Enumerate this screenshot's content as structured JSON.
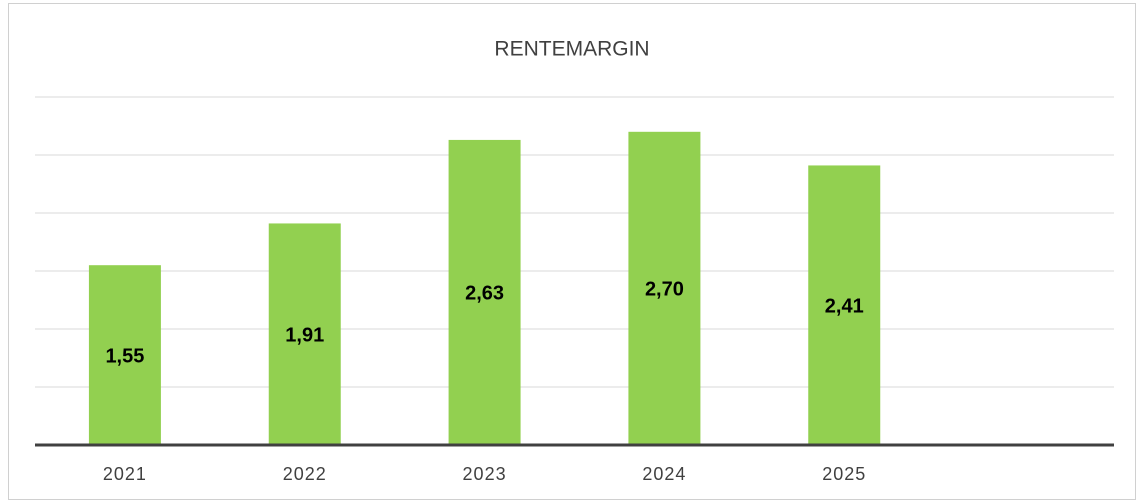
{
  "chart_data": {
    "type": "bar",
    "title": "RENTEMARGIN",
    "categories": [
      "2021",
      "2022",
      "2023",
      "2024",
      "2025",
      null
    ],
    "values": [
      1.55,
      1.91,
      2.63,
      2.7,
      2.41,
      null
    ],
    "value_labels": [
      "1,55",
      "1,91",
      "2,63",
      "2,70",
      "2,41",
      null
    ],
    "color": "#92d050",
    "ylim": [
      0,
      3
    ],
    "yticks": [
      0,
      0.5,
      1,
      1.5,
      2,
      2.5,
      3
    ],
    "grid": true
  }
}
